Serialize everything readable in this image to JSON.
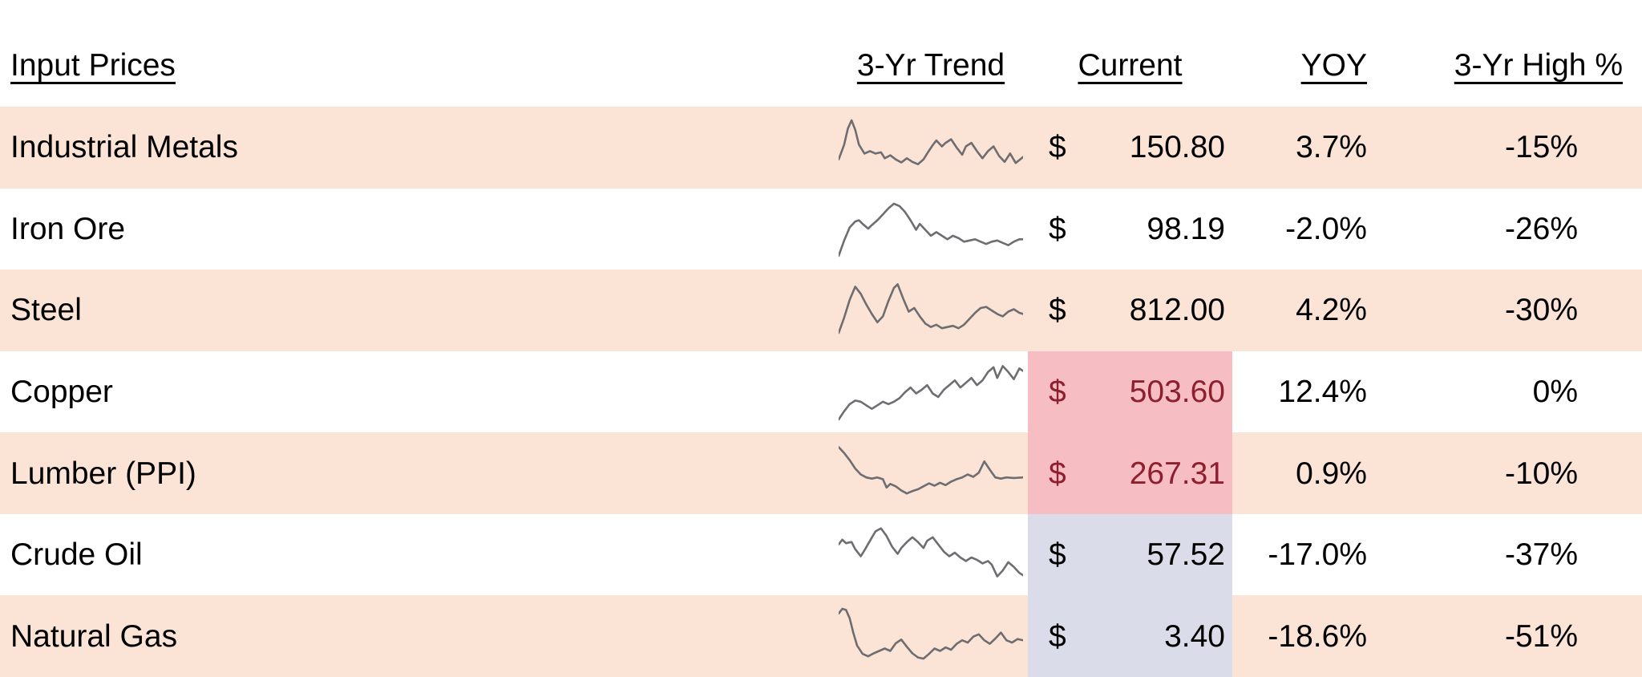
{
  "title": "Input Prices",
  "colors": {
    "row_alt_peach": "#FBE3D5",
    "highlight_bad_bg": "#F6BDC2",
    "highlight_bad_text": "#8E1F2E",
    "highlight_neutral_bg": "#DADDE9",
    "sparkline_gray": "#6D6D72",
    "text": "#000000",
    "background": "#FFFFFF"
  },
  "table": {
    "headers": {
      "label": "Input Prices",
      "trend": "3-Yr Trend",
      "current": "Current",
      "yoy": "YOY",
      "high": "3-Yr High %"
    },
    "rows": [
      {
        "label": "Industrial Metals",
        "currency": "$",
        "current": "150.80",
        "yoy": "3.7%",
        "high": "-15%",
        "highlight": "none",
        "spark": [
          [
            0,
            70
          ],
          [
            3,
            45
          ],
          [
            5,
            18
          ],
          [
            7,
            4
          ],
          [
            9,
            20
          ],
          [
            11,
            45
          ],
          [
            14,
            60
          ],
          [
            17,
            56
          ],
          [
            20,
            60
          ],
          [
            23,
            58
          ],
          [
            25,
            68
          ],
          [
            28,
            63
          ],
          [
            31,
            70
          ],
          [
            34,
            75
          ],
          [
            37,
            68
          ],
          [
            40,
            74
          ],
          [
            43,
            78
          ],
          [
            46,
            70
          ],
          [
            48,
            60
          ],
          [
            51,
            46
          ],
          [
            53,
            38
          ],
          [
            56,
            48
          ],
          [
            58,
            42
          ],
          [
            61,
            36
          ],
          [
            64,
            50
          ],
          [
            67,
            62
          ],
          [
            69,
            48
          ],
          [
            72,
            42
          ],
          [
            75,
            56
          ],
          [
            78,
            68
          ],
          [
            81,
            56
          ],
          [
            84,
            48
          ],
          [
            87,
            64
          ],
          [
            90,
            74
          ],
          [
            93,
            60
          ],
          [
            96,
            76
          ],
          [
            100,
            66
          ]
        ]
      },
      {
        "label": "Iron Ore",
        "currency": "$",
        "current": "98.19",
        "yoy": "-2.0%",
        "high": "-26%",
        "highlight": "none",
        "spark": [
          [
            0,
            96
          ],
          [
            3,
            70
          ],
          [
            6,
            48
          ],
          [
            9,
            38
          ],
          [
            11,
            36
          ],
          [
            13,
            42
          ],
          [
            16,
            50
          ],
          [
            18,
            44
          ],
          [
            21,
            36
          ],
          [
            24,
            26
          ],
          [
            27,
            16
          ],
          [
            30,
            8
          ],
          [
            33,
            12
          ],
          [
            36,
            22
          ],
          [
            39,
            36
          ],
          [
            42,
            52
          ],
          [
            44,
            42
          ],
          [
            47,
            52
          ],
          [
            50,
            62
          ],
          [
            53,
            56
          ],
          [
            56,
            62
          ],
          [
            59,
            68
          ],
          [
            62,
            62
          ],
          [
            65,
            66
          ],
          [
            68,
            72
          ],
          [
            71,
            70
          ],
          [
            74,
            68
          ],
          [
            77,
            72
          ],
          [
            80,
            76
          ],
          [
            83,
            72
          ],
          [
            86,
            70
          ],
          [
            89,
            74
          ],
          [
            92,
            78
          ],
          [
            95,
            72
          ],
          [
            98,
            68
          ],
          [
            100,
            68
          ]
        ]
      },
      {
        "label": "Steel",
        "currency": "$",
        "current": "812.00",
        "yoy": "4.2%",
        "high": "-30%",
        "highlight": "none",
        "spark": [
          [
            0,
            88
          ],
          [
            3,
            62
          ],
          [
            6,
            32
          ],
          [
            9,
            10
          ],
          [
            12,
            22
          ],
          [
            15,
            40
          ],
          [
            18,
            56
          ],
          [
            21,
            70
          ],
          [
            24,
            60
          ],
          [
            27,
            34
          ],
          [
            30,
            12
          ],
          [
            32,
            6
          ],
          [
            35,
            30
          ],
          [
            38,
            52
          ],
          [
            41,
            46
          ],
          [
            44,
            60
          ],
          [
            47,
            72
          ],
          [
            50,
            78
          ],
          [
            53,
            74
          ],
          [
            56,
            80
          ],
          [
            59,
            78
          ],
          [
            62,
            76
          ],
          [
            65,
            80
          ],
          [
            68,
            74
          ],
          [
            71,
            64
          ],
          [
            74,
            54
          ],
          [
            77,
            46
          ],
          [
            80,
            44
          ],
          [
            83,
            50
          ],
          [
            86,
            56
          ],
          [
            89,
            60
          ],
          [
            92,
            52
          ],
          [
            95,
            48
          ],
          [
            98,
            54
          ],
          [
            100,
            56
          ]
        ]
      },
      {
        "label": "Copper",
        "currency": "$",
        "current": "503.60",
        "yoy": "12.4%",
        "high": "0%",
        "highlight": "bad",
        "spark": [
          [
            0,
            96
          ],
          [
            3,
            82
          ],
          [
            6,
            70
          ],
          [
            9,
            64
          ],
          [
            12,
            66
          ],
          [
            15,
            72
          ],
          [
            18,
            78
          ],
          [
            21,
            72
          ],
          [
            24,
            66
          ],
          [
            27,
            70
          ],
          [
            30,
            66
          ],
          [
            33,
            60
          ],
          [
            36,
            50
          ],
          [
            39,
            42
          ],
          [
            42,
            52
          ],
          [
            45,
            46
          ],
          [
            48,
            38
          ],
          [
            51,
            52
          ],
          [
            54,
            58
          ],
          [
            57,
            46
          ],
          [
            60,
            38
          ],
          [
            63,
            30
          ],
          [
            66,
            42
          ],
          [
            69,
            34
          ],
          [
            72,
            26
          ],
          [
            75,
            38
          ],
          [
            78,
            30
          ],
          [
            81,
            16
          ],
          [
            84,
            8
          ],
          [
            86,
            26
          ],
          [
            89,
            6
          ],
          [
            92,
            16
          ],
          [
            95,
            28
          ],
          [
            98,
            10
          ],
          [
            100,
            14
          ]
        ]
      },
      {
        "label": "Lumber (PPI)",
        "currency": "$",
        "current": "267.31",
        "yoy": "0.9%",
        "high": "-10%",
        "highlight": "bad",
        "spark": [
          [
            0,
            6
          ],
          [
            3,
            16
          ],
          [
            6,
            28
          ],
          [
            9,
            42
          ],
          [
            12,
            52
          ],
          [
            15,
            57
          ],
          [
            18,
            59
          ],
          [
            21,
            57
          ],
          [
            24,
            60
          ],
          [
            26,
            74
          ],
          [
            28,
            68
          ],
          [
            31,
            72
          ],
          [
            34,
            79
          ],
          [
            37,
            84
          ],
          [
            40,
            80
          ],
          [
            43,
            77
          ],
          [
            46,
            72
          ],
          [
            49,
            67
          ],
          [
            52,
            71
          ],
          [
            55,
            66
          ],
          [
            58,
            70
          ],
          [
            61,
            64
          ],
          [
            64,
            60
          ],
          [
            67,
            57
          ],
          [
            70,
            52
          ],
          [
            73,
            56
          ],
          [
            76,
            49
          ],
          [
            79,
            30
          ],
          [
            82,
            44
          ],
          [
            85,
            57
          ],
          [
            88,
            59
          ],
          [
            91,
            57
          ],
          [
            95,
            58
          ],
          [
            100,
            57
          ]
        ]
      },
      {
        "label": "Crude Oil",
        "currency": "$",
        "current": "57.52",
        "yoy": "-17.0%",
        "high": "-37%",
        "highlight": "neutral",
        "spark": [
          [
            0,
            32
          ],
          [
            2,
            24
          ],
          [
            4,
            30
          ],
          [
            7,
            28
          ],
          [
            9,
            40
          ],
          [
            12,
            52
          ],
          [
            14,
            42
          ],
          [
            17,
            26
          ],
          [
            20,
            10
          ],
          [
            23,
            5
          ],
          [
            26,
            18
          ],
          [
            29,
            36
          ],
          [
            32,
            48
          ],
          [
            34,
            38
          ],
          [
            37,
            28
          ],
          [
            40,
            20
          ],
          [
            43,
            28
          ],
          [
            46,
            38
          ],
          [
            48,
            26
          ],
          [
            51,
            20
          ],
          [
            54,
            32
          ],
          [
            57,
            44
          ],
          [
            60,
            52
          ],
          [
            63,
            46
          ],
          [
            66,
            54
          ],
          [
            69,
            60
          ],
          [
            72,
            54
          ],
          [
            75,
            58
          ],
          [
            78,
            64
          ],
          [
            81,
            60
          ],
          [
            83,
            66
          ],
          [
            86,
            86
          ],
          [
            89,
            76
          ],
          [
            92,
            62
          ],
          [
            95,
            70
          ],
          [
            98,
            80
          ],
          [
            100,
            84
          ]
        ]
      },
      {
        "label": "Natural Gas",
        "currency": "$",
        "current": "3.40",
        "yoy": "-18.6%",
        "high": "-51%",
        "highlight": "neutral",
        "spark": [
          [
            0,
            12
          ],
          [
            2,
            4
          ],
          [
            4,
            6
          ],
          [
            6,
            20
          ],
          [
            8,
            45
          ],
          [
            10,
            66
          ],
          [
            13,
            80
          ],
          [
            16,
            84
          ],
          [
            19,
            79
          ],
          [
            22,
            75
          ],
          [
            25,
            71
          ],
          [
            28,
            75
          ],
          [
            31,
            62
          ],
          [
            34,
            56
          ],
          [
            37,
            68
          ],
          [
            40,
            79
          ],
          [
            43,
            86
          ],
          [
            46,
            88
          ],
          [
            49,
            80
          ],
          [
            52,
            71
          ],
          [
            55,
            75
          ],
          [
            58,
            69
          ],
          [
            61,
            73
          ],
          [
            64,
            63
          ],
          [
            67,
            57
          ],
          [
            70,
            61
          ],
          [
            73,
            51
          ],
          [
            76,
            47
          ],
          [
            79,
            57
          ],
          [
            82,
            63
          ],
          [
            85,
            54
          ],
          [
            88,
            44
          ],
          [
            91,
            57
          ],
          [
            94,
            61
          ],
          [
            97,
            55
          ],
          [
            100,
            57
          ]
        ]
      }
    ]
  },
  "chart_data": {
    "type": "table",
    "title": "Input Prices",
    "columns": [
      "Input Prices",
      "3-Yr Trend",
      "Current",
      "YOY",
      "3-Yr High %"
    ],
    "rows": [
      [
        "Industrial Metals",
        "sparkline",
        150.8,
        "3.7%",
        "-15%"
      ],
      [
        "Iron Ore",
        "sparkline",
        98.19,
        "-2.0%",
        "-26%"
      ],
      [
        "Steel",
        "sparkline",
        812.0,
        "4.2%",
        "-30%"
      ],
      [
        "Copper",
        "sparkline",
        503.6,
        "12.4%",
        "0%"
      ],
      [
        "Lumber (PPI)",
        "sparkline",
        267.31,
        "0.9%",
        "-10%"
      ],
      [
        "Crude Oil",
        "sparkline",
        57.52,
        "-17.0%",
        "-37%"
      ],
      [
        "Natural Gas",
        "sparkline",
        3.4,
        "-18.6%",
        "-51%"
      ]
    ],
    "highlights": {
      "red_flagged_current": [
        "Copper",
        "Lumber (PPI)"
      ],
      "bluegray_flagged_current": [
        "Crude Oil",
        "Natural Gas"
      ]
    },
    "layout": {
      "alternating_row_fill": "peach, starting with first data row",
      "sparkline_column": "3-yr trend mini line charts, gray",
      "currency_symbol": "$ left-aligned, value right-aligned in Current column"
    }
  }
}
